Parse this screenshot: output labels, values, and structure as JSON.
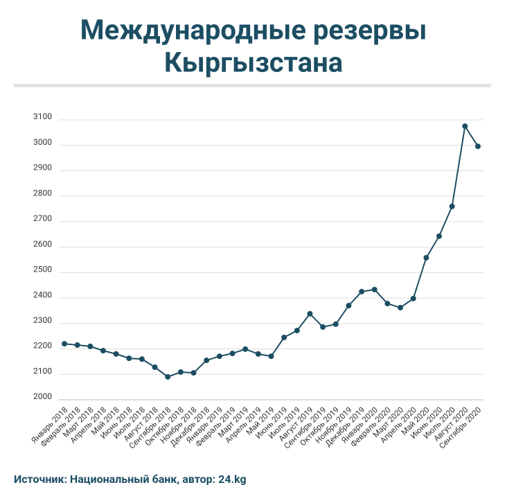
{
  "chart_data": {
    "type": "line",
    "title": [
      "Международные резервы",
      "Кыргызстана"
    ],
    "source": "Источник: Национальный банк, автор: 24.kg",
    "categories": [
      "Январь 2018",
      "Февраль 2018",
      "Март 2018",
      "Апрель 2018",
      "Май 2018",
      "Июнь 2018",
      "Июль 2018",
      "Август 2018",
      "Сентябрь 2018",
      "Октябрь 2018",
      "Ноябрь 2018",
      "Декабрь 2018",
      "Январь 2019",
      "Февраль 2019",
      "Март 2019",
      "Апрель 2019",
      "Май 2019",
      "Июнь 2019",
      "Июль 2019",
      "Август 2019",
      "Сентябрь 2019",
      "Октябрь 2019",
      "Ноябрь 2019",
      "Декабрь 2019",
      "Январь 2020",
      "Февраль 2020",
      "Март 2020",
      "Апрель 2020",
      "Май 2020",
      "Июнь 2020",
      "Июль 2020",
      "Август 2020",
      "Сентябрь 2020"
    ],
    "series": [
      {
        "color": "#1c4e63",
        "values": [
          2220,
          2215,
          2210,
          2193,
          2180,
          2163,
          2160,
          2128,
          2090,
          2109,
          2106,
          2155,
          2171,
          2182,
          2199,
          2180,
          2171,
          2245,
          2272,
          2338,
          2286,
          2297,
          2370,
          2425,
          2433,
          2378,
          2362,
          2398,
          2558,
          2643,
          2760,
          3075,
          2996
        ]
      }
    ],
    "ylim": [
      2000,
      3100
    ],
    "yticks": [
      2000,
      2100,
      2200,
      2300,
      2400,
      2500,
      2600,
      2700,
      2800,
      2900,
      3000,
      3100
    ],
    "grid": true
  }
}
